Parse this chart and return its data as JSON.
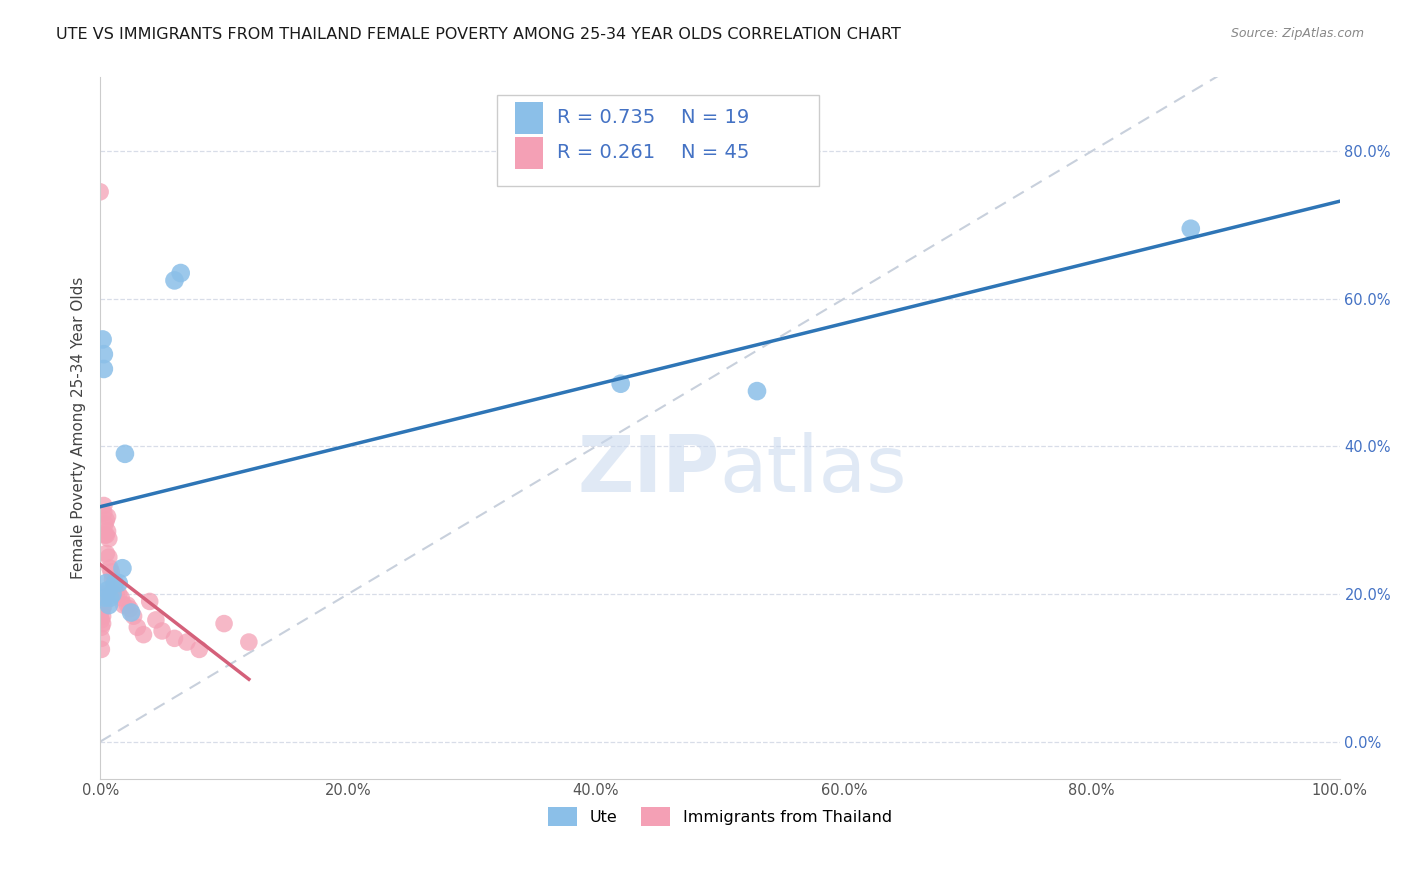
{
  "title": "UTE VS IMMIGRANTS FROM THAILAND FEMALE POVERTY AMONG 25-34 YEAR OLDS CORRELATION CHART",
  "source": "Source: ZipAtlas.com",
  "ylabel": "Female Poverty Among 25-34 Year Olds",
  "xlim": [
    0,
    1.0
  ],
  "ylim": [
    -0.05,
    0.9
  ],
  "ute_scatter_x": [
    0.002,
    0.003,
    0.003,
    0.004,
    0.005,
    0.006,
    0.007,
    0.008,
    0.01,
    0.012,
    0.015,
    0.018,
    0.02,
    0.025,
    0.06,
    0.065,
    0.42,
    0.53,
    0.88
  ],
  "ute_scatter_y": [
    0.545,
    0.525,
    0.505,
    0.195,
    0.215,
    0.205,
    0.185,
    0.195,
    0.2,
    0.215,
    0.215,
    0.235,
    0.39,
    0.175,
    0.625,
    0.635,
    0.485,
    0.475,
    0.695
  ],
  "thai_scatter_x": [
    0.0,
    0.0,
    0.001,
    0.001,
    0.001,
    0.001,
    0.002,
    0.002,
    0.002,
    0.002,
    0.003,
    0.003,
    0.003,
    0.003,
    0.004,
    0.004,
    0.005,
    0.005,
    0.005,
    0.006,
    0.006,
    0.007,
    0.007,
    0.008,
    0.009,
    0.01,
    0.011,
    0.012,
    0.013,
    0.015,
    0.017,
    0.019,
    0.022,
    0.024,
    0.027,
    0.03,
    0.035,
    0.04,
    0.045,
    0.05,
    0.06,
    0.07,
    0.08,
    0.1,
    0.12
  ],
  "thai_scatter_y": [
    0.745,
    0.17,
    0.165,
    0.155,
    0.14,
    0.125,
    0.19,
    0.18,
    0.17,
    0.16,
    0.32,
    0.31,
    0.2,
    0.185,
    0.295,
    0.28,
    0.3,
    0.28,
    0.255,
    0.305,
    0.285,
    0.275,
    0.25,
    0.235,
    0.23,
    0.22,
    0.21,
    0.205,
    0.2,
    0.2,
    0.195,
    0.185,
    0.185,
    0.18,
    0.17,
    0.155,
    0.145,
    0.19,
    0.165,
    0.15,
    0.14,
    0.135,
    0.125,
    0.16,
    0.135
  ],
  "ute_color": "#8bbfe8",
  "thai_color": "#f4a0b5",
  "ute_line_color": "#2e75b6",
  "thai_line_color": "#d4607a",
  "ref_line_color": "#c8d0dc",
  "R_ute": 0.735,
  "N_ute": 19,
  "R_thai": 0.261,
  "N_thai": 45,
  "grid_color": "#d8dde8",
  "background_color": "#ffffff",
  "title_fontsize": 11.5,
  "axis_label_fontsize": 11,
  "tick_fontsize": 10.5,
  "legend_fontsize": 14,
  "watermark_color": "#c8d8ee",
  "ytick_color": "#4472c4",
  "xtick_color": "#555555",
  "source_color": "#888888",
  "legend_text_color": "#4472c4"
}
